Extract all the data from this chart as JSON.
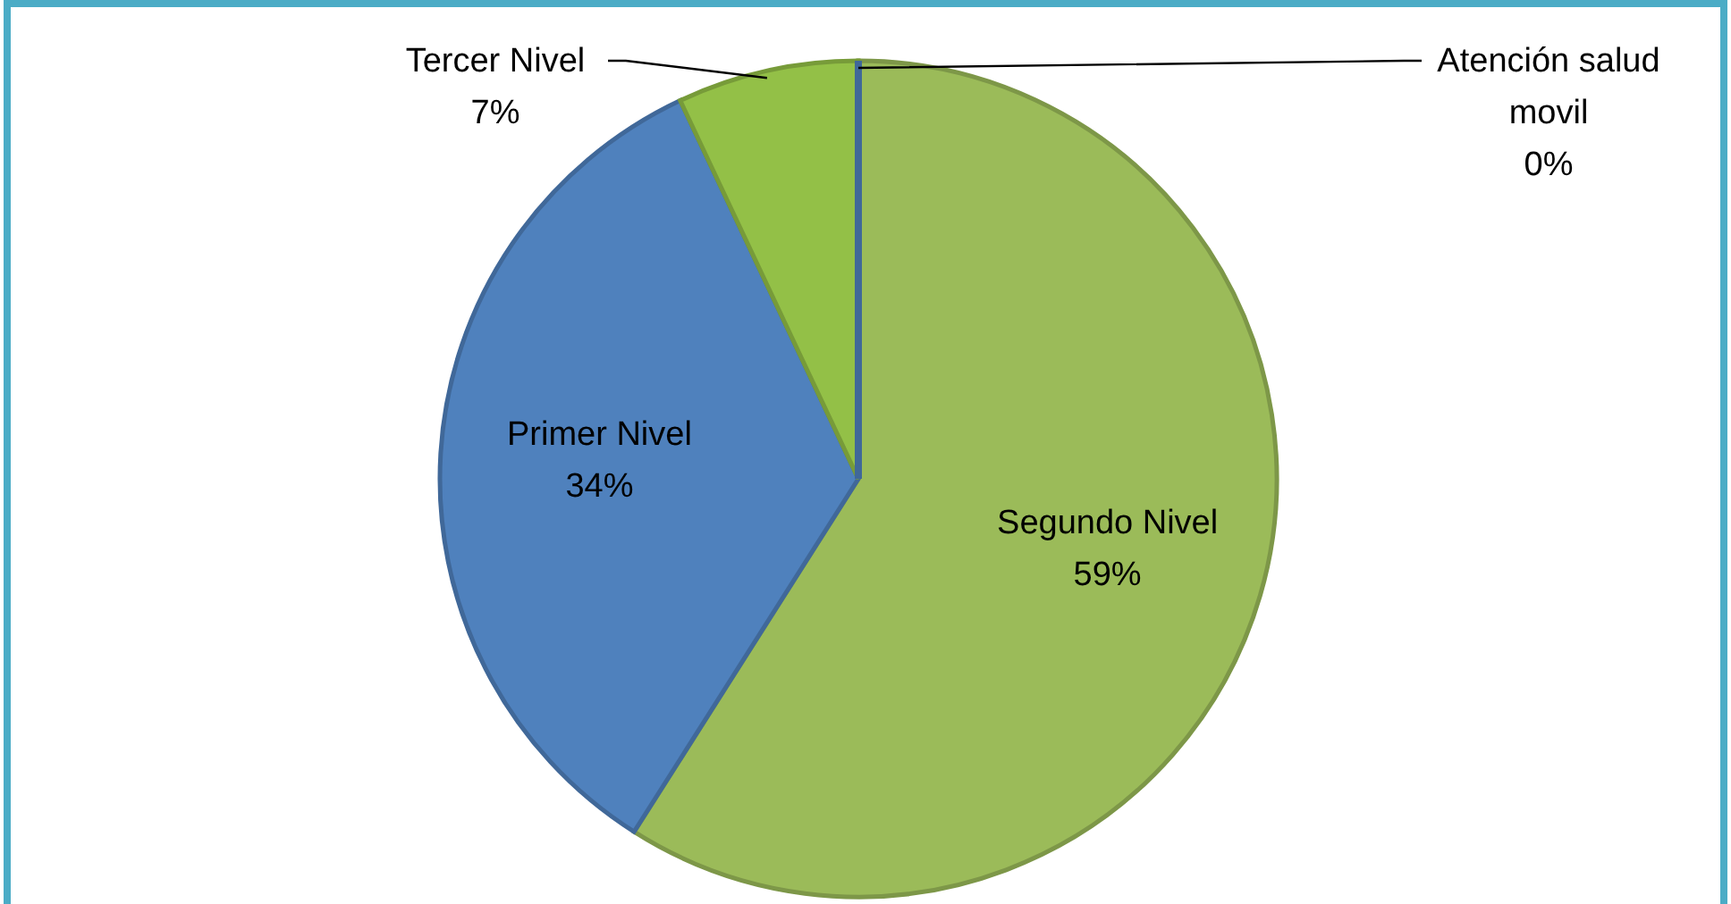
{
  "chart_data": {
    "type": "pie",
    "categories": [
      "Segundo Nivel",
      "Primer Nivel",
      "Tercer Nivel",
      "Atención salud movil"
    ],
    "values": [
      59,
      34,
      7,
      0
    ],
    "colors": [
      "#9bbb59",
      "#4f81bd",
      "#93c047",
      "#4f81bd"
    ],
    "value_labels": [
      "59%",
      "34%",
      "7%",
      "0%"
    ]
  }
}
